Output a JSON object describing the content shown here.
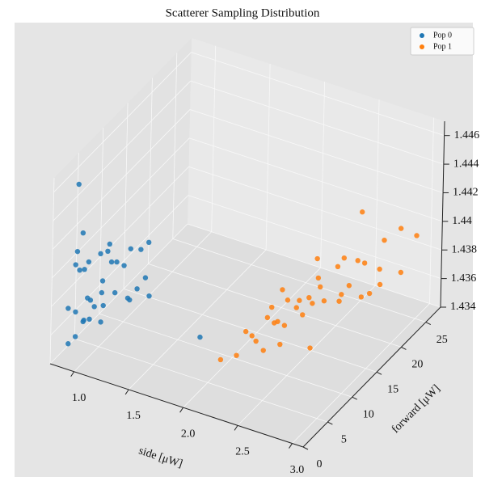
{
  "chart_data": {
    "type": "scatter3d",
    "title": "Scatterer Sampling Distribution",
    "x_label": "side [μW]",
    "y_label": "forward [μW]",
    "xlim": [
      0.78,
      3.1
    ],
    "ylim": [
      0,
      28
    ],
    "zlim": [
      1.434,
      1.447
    ],
    "xticks": [
      {
        "value": 1.0,
        "label": "1.0"
      },
      {
        "value": 1.5,
        "label": "1.5"
      },
      {
        "value": 2.0,
        "label": "2.0"
      },
      {
        "value": 2.5,
        "label": "2.5"
      },
      {
        "value": 3.0,
        "label": "3.0"
      }
    ],
    "yticks": [
      0,
      5,
      10,
      15,
      20,
      25
    ],
    "zticks": [
      1.434,
      1.436,
      1.438,
      1.44,
      1.442,
      1.444,
      1.446
    ],
    "grid": true,
    "legend": "upper right",
    "series": [
      {
        "name": "Pop 0",
        "color": "#1f77b4",
        "x": [
          0.92,
          0.88,
          0.95,
          1.0,
          0.9,
          0.85,
          0.97,
          1.02,
          0.93,
          0.89,
          0.96,
          1.05,
          0.91,
          0.87,
          0.99,
          1.08,
          0.94,
          0.86,
          1.01,
          1.1,
          0.92,
          0.95,
          0.9,
          0.98,
          1.04,
          0.88,
          0.93,
          1.12,
          0.96,
          0.91,
          1.06,
          0.89,
          1.0,
          0.94,
          1.15,
          0.97,
          1.79
        ],
        "y": [
          2,
          4,
          1,
          5,
          3,
          6,
          8,
          2,
          10,
          1,
          4,
          7,
          12,
          3,
          6,
          9,
          0,
          5,
          11,
          13,
          2,
          8,
          4,
          6,
          3,
          14,
          7,
          10,
          1,
          5,
          12,
          9,
          15,
          3,
          11,
          6,
          8
        ],
        "z": [
          1.4462,
          1.442,
          1.441,
          1.4405,
          1.4398,
          1.4392,
          1.4388,
          1.4385,
          1.438,
          1.4378,
          1.4375,
          1.4372,
          1.437,
          1.4368,
          1.4365,
          1.4362,
          1.4358,
          1.4355,
          1.4352,
          1.435,
          1.4415,
          1.44,
          1.4395,
          1.4382,
          1.4376,
          1.4374,
          1.4369,
          1.4366,
          1.436,
          1.4357,
          1.4385,
          1.439,
          1.4378,
          1.4363,
          1.4371,
          1.4353,
          1.4356
        ]
      },
      {
        "name": "Pop 1",
        "color": "#ff7f0e",
        "x": [
          2.5,
          2.4,
          2.6,
          2.3,
          2.7,
          2.55,
          2.45,
          2.65,
          2.35,
          2.75,
          2.5,
          2.6,
          2.2,
          2.8,
          2.4,
          2.7,
          2.55,
          2.9,
          2.3,
          2.65,
          2.45,
          2.85,
          2.6,
          2.5,
          2.95,
          2.35,
          2.75,
          3.0,
          2.55,
          2.4,
          2.7,
          2.8,
          2.45,
          2.65,
          2.9,
          2.25,
          2.6,
          2.85,
          2.5,
          2.75
        ],
        "y": [
          5,
          8,
          10,
          4,
          12,
          15,
          9,
          18,
          6,
          20,
          13,
          7,
          3,
          22,
          11,
          16,
          19,
          24,
          8,
          14,
          17,
          21,
          12,
          25,
          23,
          10,
          9,
          25,
          6,
          14,
          18,
          20,
          11,
          5,
          16,
          7,
          22,
          13,
          15,
          24
        ],
        "z": [
          1.4375,
          1.4385,
          1.4395,
          1.437,
          1.44,
          1.4392,
          1.438,
          1.4398,
          1.4378,
          1.439,
          1.4372,
          1.4388,
          1.4368,
          1.438,
          1.4394,
          1.4376,
          1.4386,
          1.4404,
          1.4366,
          1.4382,
          1.4396,
          1.4374,
          1.439,
          1.4402,
          1.4378,
          1.4384,
          1.4369,
          1.4398,
          1.4392,
          1.4371,
          1.438,
          1.437,
          1.4388,
          1.4383,
          1.4384,
          1.4375,
          1.4381,
          1.4395,
          1.4373,
          1.4392
        ]
      }
    ]
  }
}
